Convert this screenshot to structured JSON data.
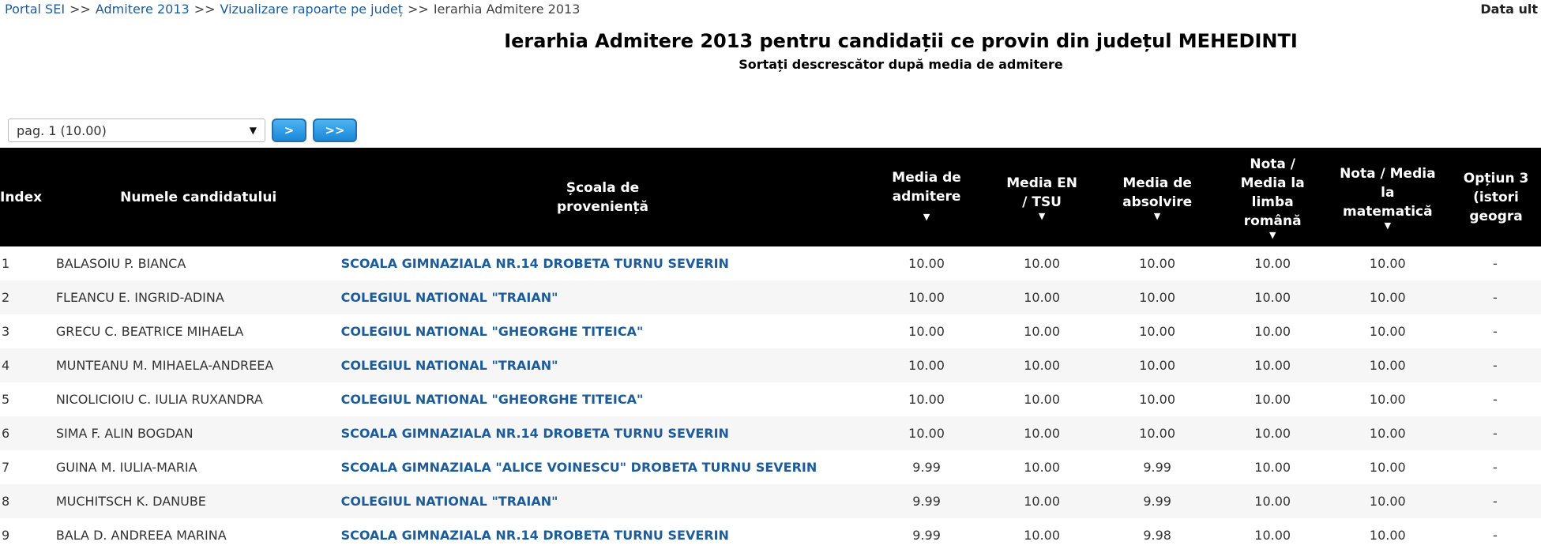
{
  "breadcrumb": {
    "items": [
      "Portal SEI",
      "Admitere 2013",
      "Vizualizare rapoarte pe județ"
    ],
    "current": "Ierarhia Admitere 2013",
    "separator": ">>"
  },
  "top_right_text": "Data ult",
  "title": "Ierarhia Admitere 2013 pentru candidații ce provin din județul MEHEDINTI",
  "subtitle": "Sortați descrescător după media de admitere",
  "pager": {
    "selected": "pag. 1 (10.00)",
    "next_label": ">",
    "last_label": ">>"
  },
  "table": {
    "headers": [
      "Index",
      "Numele candidatului",
      "Școala de proveniență",
      "Media de admitere",
      "Media EN / TSU",
      "Media de absolvire",
      "Nota / Media la limba română",
      "Nota / Media la matematică",
      "Opțiun 3 (istori geogra"
    ],
    "rows": [
      [
        "1",
        "BALASOIU P. BIANCA",
        "SCOALA GIMNAZIALA NR.14 DROBETA TURNU SEVERIN",
        "10.00",
        "10.00",
        "10.00",
        "10.00",
        "10.00",
        "-"
      ],
      [
        "2",
        "FLEANCU E. INGRID-ADINA",
        "COLEGIUL NATIONAL \"TRAIAN\"",
        "10.00",
        "10.00",
        "10.00",
        "10.00",
        "10.00",
        "-"
      ],
      [
        "3",
        "GRECU C. BEATRICE MIHAELA",
        "COLEGIUL NATIONAL \"GHEORGHE TITEICA\"",
        "10.00",
        "10.00",
        "10.00",
        "10.00",
        "10.00",
        "-"
      ],
      [
        "4",
        "MUNTEANU M. MIHAELA-ANDREEA",
        "COLEGIUL NATIONAL \"TRAIAN\"",
        "10.00",
        "10.00",
        "10.00",
        "10.00",
        "10.00",
        "-"
      ],
      [
        "5",
        "NICOLICIOIU C. IULIA RUXANDRA",
        "COLEGIUL NATIONAL \"GHEORGHE TITEICA\"",
        "10.00",
        "10.00",
        "10.00",
        "10.00",
        "10.00",
        "-"
      ],
      [
        "6",
        "SIMA F. ALIN BOGDAN",
        "SCOALA GIMNAZIALA NR.14 DROBETA TURNU SEVERIN",
        "10.00",
        "10.00",
        "10.00",
        "10.00",
        "10.00",
        "-"
      ],
      [
        "7",
        "GUINA M. IULIA-MARIA",
        "SCOALA GIMNAZIALA \"ALICE VOINESCU\" DROBETA TURNU SEVERIN",
        "9.99",
        "10.00",
        "9.99",
        "10.00",
        "10.00",
        "-"
      ],
      [
        "8",
        "MUCHITSCH K. DANUBE",
        "COLEGIUL NATIONAL \"TRAIAN\"",
        "9.99",
        "10.00",
        "9.99",
        "10.00",
        "10.00",
        "-"
      ],
      [
        "9",
        "BALA D. ANDREEA MARINA",
        "SCOALA GIMNAZIALA NR.14 DROBETA TURNU SEVERIN",
        "9.99",
        "10.00",
        "9.98",
        "10.00",
        "10.00",
        "-"
      ]
    ]
  },
  "colors": {
    "link": "#1c5c9a",
    "header_bg": "#000000",
    "button": "#1a88d8"
  }
}
